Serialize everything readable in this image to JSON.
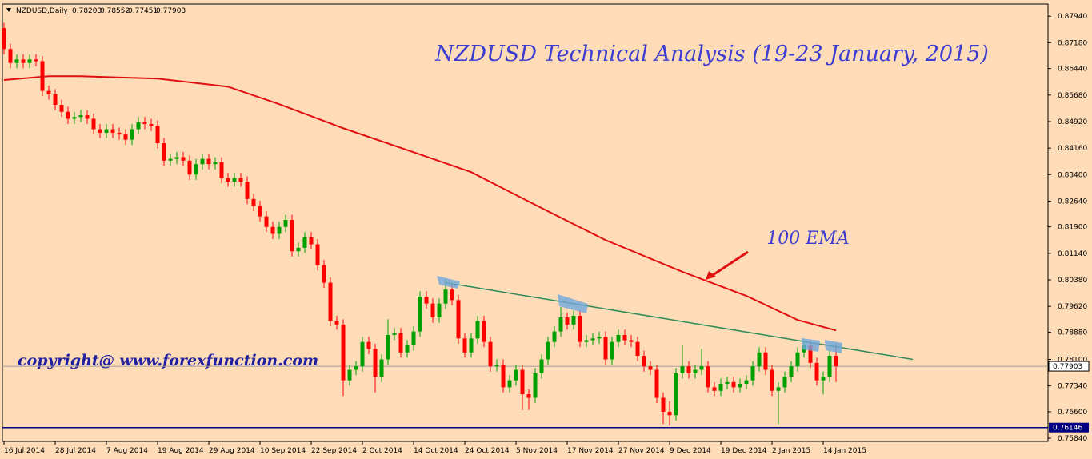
{
  "chart_data": {
    "type": "candlestick",
    "symbol": "NZDUSD,Daily",
    "title": "NZDUSD Technical Analysis (19-23 January, 2015)",
    "watermark": "copyright@ www.forexfunction.com",
    "up_color": "#00a000",
    "down_color": "#ff0000",
    "categories": [
      "16 Jul 2014",
      null,
      null,
      null,
      null,
      null,
      null,
      null,
      "28 Jul 2014",
      null,
      null,
      null,
      null,
      null,
      null,
      null,
      "7 Aug 2014",
      null,
      null,
      null,
      null,
      null,
      null,
      null,
      "19 Aug 2014",
      null,
      null,
      null,
      null,
      null,
      null,
      null,
      "29 Aug 2014",
      null,
      null,
      null,
      null,
      null,
      null,
      null,
      "10 Sep 2014",
      null,
      null,
      null,
      null,
      null,
      null,
      null,
      "22 Sep 2014",
      null,
      null,
      null,
      null,
      null,
      null,
      null,
      "2 Oct 2014",
      null,
      null,
      null,
      null,
      null,
      null,
      null,
      "14 Oct 2014",
      null,
      null,
      null,
      null,
      null,
      null,
      null,
      "24 Oct 2014",
      null,
      null,
      null,
      null,
      null,
      null,
      null,
      "5 Nov 2014",
      null,
      null,
      null,
      null,
      null,
      null,
      null,
      "17 Nov 2014",
      null,
      null,
      null,
      null,
      null,
      null,
      null,
      "27 Nov 2014",
      null,
      null,
      null,
      null,
      null,
      null,
      null,
      "9 Dec 2014",
      null,
      null,
      null,
      null,
      null,
      null,
      null,
      "19 Dec 2014",
      null,
      null,
      null,
      null,
      null,
      null,
      null,
      "2 Jan 2015",
      null,
      null,
      null,
      null,
      null,
      null,
      null,
      "14 Jan 2015",
      null,
      null
    ],
    "open": [
      0.876,
      0.87,
      0.866,
      0.867,
      0.866,
      0.867,
      0.8665,
      0.858,
      0.857,
      0.854,
      0.852,
      0.85,
      0.8505,
      0.851,
      0.85,
      0.847,
      0.846,
      0.847,
      0.846,
      0.8455,
      0.844,
      0.847,
      0.849,
      0.8485,
      0.848,
      0.843,
      0.838,
      0.8385,
      0.839,
      0.838,
      0.834,
      0.837,
      0.8385,
      0.837,
      0.8375,
      0.833,
      0.832,
      0.833,
      0.832,
      0.827,
      0.825,
      0.822,
      0.819,
      0.817,
      0.819,
      0.821,
      0.812,
      0.813,
      0.816,
      0.814,
      0.808,
      0.803,
      0.792,
      0.791,
      0.775,
      0.778,
      0.779,
      0.786,
      0.784,
      0.776,
      0.781,
      0.788,
      0.7885,
      0.783,
      0.785,
      0.789,
      0.799,
      0.797,
      0.793,
      0.797,
      0.801,
      0.798,
      0.787,
      0.783,
      0.787,
      0.792,
      0.786,
      0.779,
      0.7795,
      0.773,
      0.775,
      0.778,
      0.771,
      0.77,
      0.777,
      0.781,
      0.786,
      0.789,
      0.793,
      0.791,
      0.7935,
      0.786,
      0.7865,
      0.787,
      0.7875,
      0.781,
      0.786,
      0.788,
      0.7865,
      0.786,
      0.782,
      0.779,
      0.778,
      0.77,
      0.766,
      0.765,
      0.777,
      0.779,
      0.777,
      0.778,
      0.779,
      0.773,
      0.772,
      0.774,
      0.7745,
      0.773,
      0.774,
      0.775,
      0.779,
      0.783,
      0.778,
      0.772,
      0.773,
      0.776,
      0.779,
      0.783,
      0.785,
      0.78,
      0.775,
      0.776,
      0.78203
    ],
    "high": [
      0.8775,
      0.8715,
      0.8685,
      0.8685,
      0.8685,
      0.8685,
      0.868,
      0.8595,
      0.8585,
      0.8555,
      0.8535,
      0.852,
      0.8525,
      0.8525,
      0.8515,
      0.8485,
      0.8485,
      0.8485,
      0.8475,
      0.847,
      0.8485,
      0.8505,
      0.8505,
      0.85,
      0.8495,
      0.8445,
      0.84,
      0.8405,
      0.8405,
      0.8395,
      0.8385,
      0.84,
      0.84,
      0.839,
      0.839,
      0.8345,
      0.8345,
      0.8345,
      0.8335,
      0.8285,
      0.8265,
      0.8235,
      0.8205,
      0.8205,
      0.8225,
      0.8225,
      0.8145,
      0.8175,
      0.8175,
      0.8155,
      0.8095,
      0.8045,
      0.7935,
      0.7925,
      0.7795,
      0.7805,
      0.7875,
      0.7875,
      0.7855,
      0.7825,
      0.7925,
      0.79,
      0.79,
      0.7865,
      0.7905,
      0.8005,
      0.8005,
      0.7985,
      0.7985,
      0.804,
      0.8025,
      0.7995,
      0.7885,
      0.7885,
      0.7935,
      0.7935,
      0.7875,
      0.781,
      0.781,
      0.7765,
      0.7795,
      0.7795,
      0.7725,
      0.7785,
      0.7825,
      0.7875,
      0.7905,
      0.796,
      0.7945,
      0.795,
      0.795,
      0.788,
      0.7885,
      0.789,
      0.789,
      0.7875,
      0.7895,
      0.7895,
      0.788,
      0.7875,
      0.7835,
      0.7805,
      0.7795,
      0.7715,
      0.769,
      0.7785,
      0.785,
      0.7805,
      0.7795,
      0.784,
      0.7805,
      0.7745,
      0.7755,
      0.776,
      0.776,
      0.7755,
      0.7765,
      0.7805,
      0.7845,
      0.7845,
      0.7795,
      0.7745,
      0.7775,
      0.7805,
      0.7845,
      0.7865,
      0.7865,
      0.7815,
      0.7775,
      0.7835,
      0.78552
    ],
    "low": [
      0.8685,
      0.8645,
      0.8645,
      0.8645,
      0.8645,
      0.865,
      0.8565,
      0.8555,
      0.8525,
      0.8505,
      0.8485,
      0.8485,
      0.849,
      0.8485,
      0.8455,
      0.8445,
      0.8445,
      0.8445,
      0.844,
      0.8425,
      0.8425,
      0.8455,
      0.847,
      0.8465,
      0.8415,
      0.8365,
      0.8365,
      0.837,
      0.8365,
      0.8325,
      0.8325,
      0.8355,
      0.8355,
      0.8355,
      0.8315,
      0.8305,
      0.8305,
      0.8305,
      0.8255,
      0.8235,
      0.8205,
      0.8175,
      0.8155,
      0.8155,
      0.8175,
      0.8105,
      0.8105,
      0.8115,
      0.8125,
      0.8065,
      0.8015,
      0.7905,
      0.7895,
      0.7705,
      0.7735,
      0.7765,
      0.7775,
      0.7825,
      0.7715,
      0.7745,
      0.7795,
      0.7865,
      0.7815,
      0.7815,
      0.7835,
      0.7875,
      0.7955,
      0.7915,
      0.7915,
      0.7955,
      0.7965,
      0.7855,
      0.7815,
      0.7815,
      0.7855,
      0.7845,
      0.7775,
      0.7775,
      0.7715,
      0.7715,
      0.7735,
      0.7665,
      0.7665,
      0.7685,
      0.7755,
      0.7795,
      0.7845,
      0.7875,
      0.7895,
      0.7895,
      0.7845,
      0.7845,
      0.785,
      0.7855,
      0.7795,
      0.7795,
      0.7845,
      0.785,
      0.7845,
      0.7805,
      0.7775,
      0.7765,
      0.7685,
      0.7625,
      0.762,
      0.7635,
      0.7755,
      0.7755,
      0.7755,
      0.7765,
      0.7715,
      0.7705,
      0.7705,
      0.7725,
      0.7715,
      0.7715,
      0.7725,
      0.7735,
      0.7775,
      0.7765,
      0.7705,
      0.7625,
      0.7715,
      0.7745,
      0.7775,
      0.7815,
      0.7785,
      0.7735,
      0.771,
      0.7745,
      0.77451
    ],
    "close": [
      0.87,
      0.866,
      0.867,
      0.866,
      0.867,
      0.8665,
      0.858,
      0.857,
      0.854,
      0.852,
      0.85,
      0.8505,
      0.851,
      0.85,
      0.847,
      0.846,
      0.847,
      0.846,
      0.8455,
      0.844,
      0.847,
      0.849,
      0.8485,
      0.848,
      0.843,
      0.838,
      0.8385,
      0.839,
      0.838,
      0.834,
      0.837,
      0.8385,
      0.837,
      0.8375,
      0.833,
      0.832,
      0.833,
      0.832,
      0.827,
      0.825,
      0.822,
      0.819,
      0.817,
      0.819,
      0.821,
      0.812,
      0.813,
      0.816,
      0.814,
      0.808,
      0.803,
      0.792,
      0.791,
      0.775,
      0.778,
      0.779,
      0.786,
      0.784,
      0.776,
      0.781,
      0.788,
      0.7885,
      0.783,
      0.785,
      0.789,
      0.799,
      0.797,
      0.793,
      0.797,
      0.801,
      0.798,
      0.787,
      0.783,
      0.787,
      0.792,
      0.786,
      0.779,
      0.7795,
      0.773,
      0.775,
      0.778,
      0.771,
      0.77,
      0.777,
      0.781,
      0.786,
      0.789,
      0.793,
      0.791,
      0.7935,
      0.786,
      0.7865,
      0.787,
      0.7875,
      0.781,
      0.786,
      0.788,
      0.7865,
      0.786,
      0.782,
      0.779,
      0.778,
      0.77,
      0.766,
      0.765,
      0.777,
      0.779,
      0.777,
      0.778,
      0.779,
      0.773,
      0.772,
      0.774,
      0.7745,
      0.773,
      0.774,
      0.775,
      0.779,
      0.783,
      0.778,
      0.772,
      0.773,
      0.776,
      0.779,
      0.783,
      0.785,
      0.78,
      0.775,
      0.776,
      0.78203,
      0.77903
    ],
    "series": [
      {
        "name": "100 EMA",
        "color": "#e01010",
        "x": [
          0,
          7,
          12,
          24,
          35,
          43,
          53,
          64,
          73,
          84,
          94,
          106,
          116,
          124,
          130
        ],
        "values": [
          0.8611,
          0.8622,
          0.8622,
          0.8615,
          0.8592,
          0.8542,
          0.8473,
          0.8404,
          0.8347,
          0.8244,
          0.8152,
          0.8061,
          0.7992,
          0.7923,
          0.7893
        ]
      }
    ],
    "trendline": {
      "color": "#2e8b57",
      "x": [
        69,
        142
      ],
      "values": [
        0.803,
        0.781
      ]
    },
    "hline": {
      "value": 0.76146,
      "label": "0.76146",
      "color": "#000080"
    },
    "ylim": [
      0.7575,
      0.8822
    ],
    "yticks": [
      {
        "value": 0.8794,
        "label": "0.87940"
      },
      {
        "value": 0.8718,
        "label": "0.87180"
      },
      {
        "value": 0.8644,
        "label": "0.86440"
      },
      {
        "value": 0.8568,
        "label": "0.85680"
      },
      {
        "value": 0.8492,
        "label": "0.84920"
      },
      {
        "value": 0.8416,
        "label": "0.84160"
      },
      {
        "value": 0.834,
        "label": "0.83400"
      },
      {
        "value": 0.8264,
        "label": "0.82640"
      },
      {
        "value": 0.819,
        "label": "0.81900"
      },
      {
        "value": 0.8114,
        "label": "0.81140"
      },
      {
        "value": 0.8038,
        "label": "0.80380"
      },
      {
        "value": 0.7962,
        "label": "0.79620"
      },
      {
        "value": 0.7888,
        "label": "0.78880"
      },
      {
        "value": 0.781,
        "label": "0.78100"
      },
      {
        "value": 0.7734,
        "label": "0.77340"
      },
      {
        "value": 0.766,
        "label": "0.76600"
      },
      {
        "value": 0.7584,
        "label": "0.75840"
      }
    ]
  }
}
